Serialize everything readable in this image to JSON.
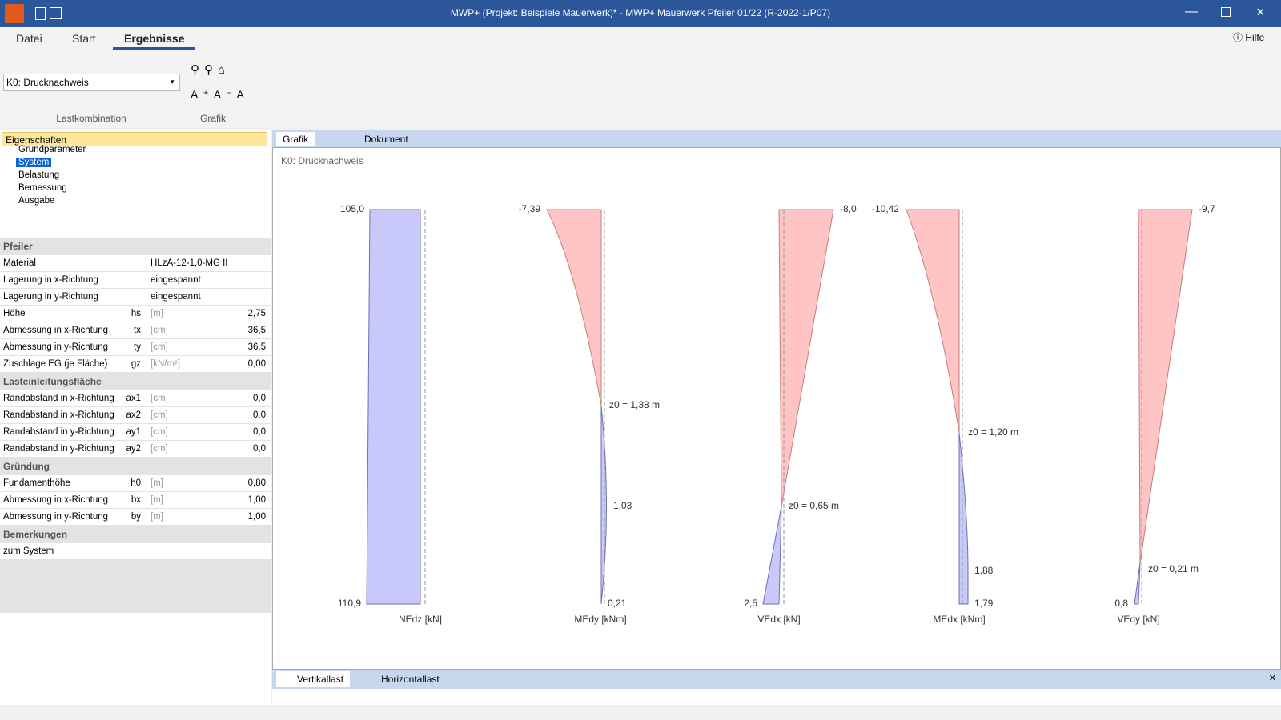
{
  "titlebar": {
    "title": "MWP+ (Projekt: Beispiele Mauerwerk)* - MWP+ Mauerwerk Pfeiler 01/22 (R-2022-1/P07)",
    "help": "Hilfe"
  },
  "ribbon": {
    "tabs": [
      "Datei",
      "Start",
      "Ergebnisse"
    ],
    "combo": "K0: Drucknachweis",
    "groups": [
      "Lastkombination",
      "Grafik"
    ]
  },
  "properties": {
    "header": "Eigenschaften",
    "tree": [
      "Grundparameter",
      "System",
      "Belastung",
      "Bemessung",
      "Ausgabe"
    ],
    "sections": [
      {
        "title": "Pfeiler",
        "rows": [
          {
            "label": "Material",
            "value": "HLzA-12-1,0-MG II"
          },
          {
            "label": "Lagerung in x-Richtung",
            "value": "eingespannt"
          },
          {
            "label": "Lagerung in y-Richtung",
            "value": "eingespannt"
          },
          {
            "label": "Höhe",
            "symbol": "hs",
            "unit": "[m]",
            "value": "2,75"
          },
          {
            "label": "Abmessung in x-Richtung",
            "symbol": "tx",
            "unit": "[cm]",
            "value": "36,5"
          },
          {
            "label": "Abmessung in y-Richtung",
            "symbol": "ty",
            "unit": "[cm]",
            "value": "36,5"
          },
          {
            "label": "Zuschlage EG (je Fläche)",
            "symbol": "gz",
            "unit": "[kN/m²]",
            "value": "0,00"
          }
        ]
      },
      {
        "title": "Lasteinleitungsfläche",
        "rows": [
          {
            "label": "Randabstand in x-Richtung",
            "symbol": "ax1",
            "unit": "[cm]",
            "value": "0,0"
          },
          {
            "label": "Randabstand in x-Richtung",
            "symbol": "ax2",
            "unit": "[cm]",
            "value": "0,0"
          },
          {
            "label": "Randabstand in y-Richtung",
            "symbol": "ay1",
            "unit": "[cm]",
            "value": "0,0"
          },
          {
            "label": "Randabstand in y-Richtung",
            "symbol": "ay2",
            "unit": "[cm]",
            "value": "0,0"
          }
        ]
      },
      {
        "title": "Gründung",
        "rows": [
          {
            "label": "Fundamenthöhe",
            "symbol": "h0",
            "unit": "[m]",
            "value": "0,80"
          },
          {
            "label": "Abmessung in x-Richtung",
            "symbol": "bx",
            "unit": "[m]",
            "value": "1,00"
          },
          {
            "label": "Abmessung in y-Richtung",
            "symbol": "by",
            "unit": "[m]",
            "value": "1,00"
          }
        ]
      },
      {
        "title": "Bemerkungen",
        "rows": [
          {
            "label": "zum System"
          }
        ]
      }
    ]
  },
  "view": {
    "tabs": [
      "Grafik",
      "Dokument"
    ],
    "caption": "K0: Drucknachweis",
    "diagrams": [
      {
        "label": "NEdz [kN]",
        "top": "105,0",
        "bottom": "110,9"
      },
      {
        "label": "MEdy [kNm]",
        "top": "-7,39",
        "zero": "z0 = 1,38 m",
        "mid": "1,03",
        "bottom": "0,21"
      },
      {
        "label": "VEdx [kN]",
        "top": "-8,0",
        "zero": "z0 = 0,65 m",
        "bottom": "2,5"
      },
      {
        "label": "MEdx [kNm]",
        "top": "-10,42",
        "zero": "z0 = 1,20 m",
        "mid": "1,88",
        "bottom": "1,79"
      },
      {
        "label": "VEdy [kN]",
        "top": "-9,7",
        "zero": "z0 = 0,21 m",
        "bottom": "0,8"
      }
    ],
    "bottom_tabs": [
      "Vertikallast",
      "Horizontallast"
    ]
  }
}
